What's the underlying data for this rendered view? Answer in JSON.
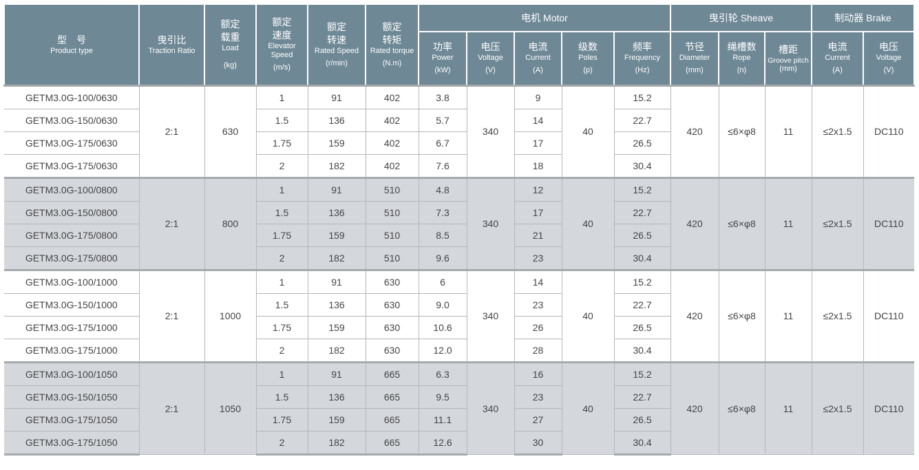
{
  "header": {
    "product_type": {
      "cn": "型　号",
      "en": "Product type"
    },
    "traction_ratio": {
      "cn": "曳引比",
      "en": "Traction Ratio"
    },
    "load": {
      "cn": "额定\n载重",
      "en": "Load",
      "unit": "(kg)"
    },
    "elevator_speed": {
      "cn": "额定\n速度",
      "en": "Elevator Speed",
      "unit": "(m/s)"
    },
    "rated_speed": {
      "cn": "额定\n转速",
      "en": "Rated Speed",
      "unit": "(r/min)"
    },
    "rated_torque": {
      "cn": "额定\n转矩",
      "en": "Rated torque",
      "unit": "(N.m)"
    },
    "motor_group": "电机 Motor",
    "sheave_group": "曳引轮 Sheave",
    "brake_group": "制动器 Brake",
    "power": {
      "cn": "功率",
      "en": "Power",
      "unit": "(kW)"
    },
    "voltage": {
      "cn": "电压",
      "en": "Voltage",
      "unit": "(V)"
    },
    "current": {
      "cn": "电流",
      "en": "Current",
      "unit": "(A)"
    },
    "poles": {
      "cn": "级数",
      "en": "Poles",
      "unit": "(p)"
    },
    "frequency": {
      "cn": "频率",
      "en": "Frequency",
      "unit": "(Hz)"
    },
    "diameter": {
      "cn": "节径",
      "en": "Diameter",
      "unit": "(mm)"
    },
    "rope": {
      "cn": "绳槽数",
      "en": "Rope",
      "unit": "(n)"
    },
    "groove_pitch": {
      "cn": "槽距",
      "en": "Groove pitch",
      "unit": "(mm)"
    },
    "brake_current": {
      "cn": "电流",
      "en": "Current",
      "unit": "(A)"
    },
    "brake_voltage": {
      "cn": "电压",
      "en": "Voltage",
      "unit": "(V)"
    }
  },
  "colors": {
    "header_bg": "#6f8896",
    "shaded_row": "#d4d8dd"
  },
  "groups": [
    {
      "ratio": "2:1",
      "load": "630",
      "voltage": "340",
      "poles": "40",
      "diameter": "420",
      "rope": "≤6×φ8",
      "pitch": "11",
      "brake_current": "≤2x1.5",
      "brake_voltage": "DC110",
      "shaded": false,
      "rows": [
        {
          "model": "GETM3.0G-100/0630",
          "speed": "1",
          "rpm": "91",
          "torque": "402",
          "power": "3.8",
          "current": "9",
          "freq": "15.2"
        },
        {
          "model": "GETM3.0G-150/0630",
          "speed": "1.5",
          "rpm": "136",
          "torque": "402",
          "power": "5.7",
          "current": "14",
          "freq": "22.7"
        },
        {
          "model": "GETM3.0G-175/0630",
          "speed": "1.75",
          "rpm": "159",
          "torque": "402",
          "power": "6.7",
          "current": "17",
          "freq": "26.5"
        },
        {
          "model": "GETM3.0G-175/0630",
          "speed": "2",
          "rpm": "182",
          "torque": "402",
          "power": "7.6",
          "current": "18",
          "freq": "30.4"
        }
      ]
    },
    {
      "ratio": "2:1",
      "load": "800",
      "voltage": "340",
      "poles": "40",
      "diameter": "420",
      "rope": "≤6×φ8",
      "pitch": "11",
      "brake_current": "≤2x1.5",
      "brake_voltage": "DC110",
      "shaded": true,
      "rows": [
        {
          "model": "GETM3.0G-100/0800",
          "speed": "1",
          "rpm": "91",
          "torque": "510",
          "power": "4.8",
          "current": "12",
          "freq": "15.2"
        },
        {
          "model": "GETM3.0G-150/0800",
          "speed": "1.5",
          "rpm": "136",
          "torque": "510",
          "power": "7.3",
          "current": "17",
          "freq": "22.7"
        },
        {
          "model": "GETM3.0G-175/0800",
          "speed": "1.75",
          "rpm": "159",
          "torque": "510",
          "power": "8.5",
          "current": "21",
          "freq": "26.5"
        },
        {
          "model": "GETM3.0G-175/0800",
          "speed": "2",
          "rpm": "182",
          "torque": "510",
          "power": "9.6",
          "current": "23",
          "freq": "30.4"
        }
      ]
    },
    {
      "ratio": "2:1",
      "load": "1000",
      "voltage": "340",
      "poles": "40",
      "diameter": "420",
      "rope": "≤6×φ8",
      "pitch": "11",
      "brake_current": "≤2x1.5",
      "brake_voltage": "DC110",
      "shaded": false,
      "rows": [
        {
          "model": "GETM3.0G-100/1000",
          "speed": "1",
          "rpm": "91",
          "torque": "630",
          "power": "6",
          "current": "14",
          "freq": "15.2"
        },
        {
          "model": "GETM3.0G-150/1000",
          "speed": "1.5",
          "rpm": "136",
          "torque": "630",
          "power": "9.0",
          "current": "23",
          "freq": "22.7"
        },
        {
          "model": "GETM3.0G-175/1000",
          "speed": "1.75",
          "rpm": "159",
          "torque": "630",
          "power": "10.6",
          "current": "26",
          "freq": "26.5"
        },
        {
          "model": "GETM3.0G-175/1000",
          "speed": "2",
          "rpm": "182",
          "torque": "630",
          "power": "12.0",
          "current": "28",
          "freq": "30.4"
        }
      ]
    },
    {
      "ratio": "2:1",
      "load": "1050",
      "voltage": "340",
      "poles": "40",
      "diameter": "420",
      "rope": "≤6×φ8",
      "pitch": "11",
      "brake_current": "≤2x1.5",
      "brake_voltage": "DC110",
      "shaded": true,
      "rows": [
        {
          "model": "GETM3.0G-100/1050",
          "speed": "1",
          "rpm": "91",
          "torque": "665",
          "power": "6.3",
          "current": "16",
          "freq": "15.2"
        },
        {
          "model": "GETM3.0G-150/1050",
          "speed": "1.5",
          "rpm": "136",
          "torque": "665",
          "power": "9.5",
          "current": "23",
          "freq": "22.7"
        },
        {
          "model": "GETM3.0G-175/1050",
          "speed": "1.75",
          "rpm": "159",
          "torque": "665",
          "power": "11.1",
          "current": "27",
          "freq": "26.5"
        },
        {
          "model": "GETM3.0G-175/1050",
          "speed": "2",
          "rpm": "182",
          "torque": "665",
          "power": "12.6",
          "current": "30",
          "freq": "30.4"
        }
      ]
    }
  ]
}
